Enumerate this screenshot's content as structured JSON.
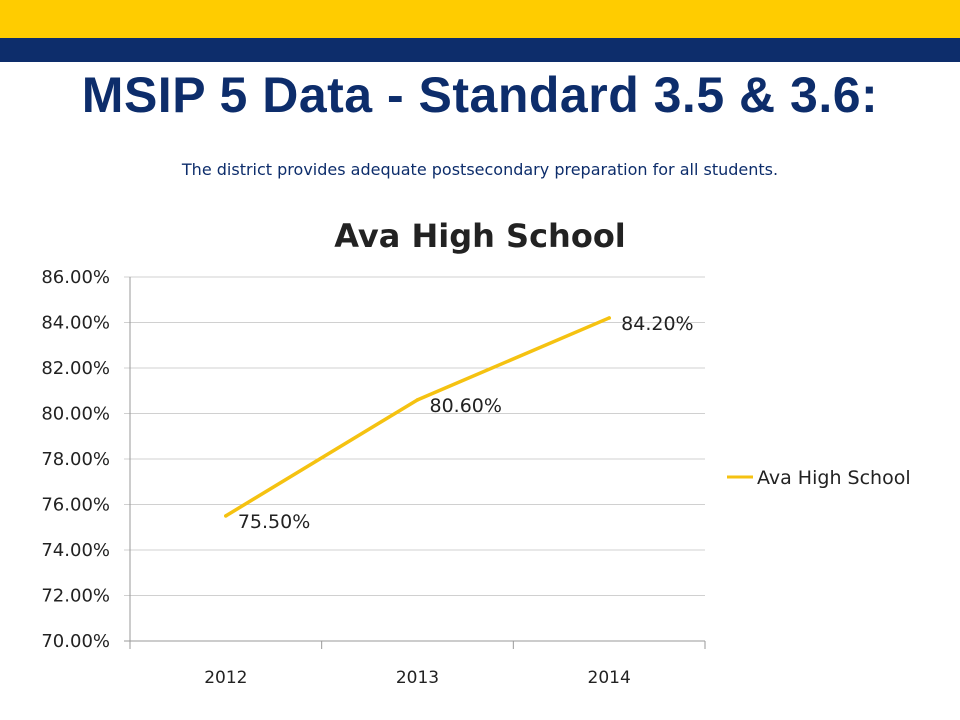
{
  "slide": {
    "title": "MSIP 5 Data - Standard 3.5 & 3.6:",
    "subtitle": "The district provides adequate postsecondary preparation for all students."
  },
  "colors": {
    "gold": "#ffcc00",
    "navy": "#0d2d6b",
    "series": "#f5c211",
    "grid": "#d0d0d0"
  },
  "chart_data": {
    "type": "line",
    "title": "Ava High School",
    "xlabel": "",
    "ylabel": "",
    "categories": [
      "2012",
      "2013",
      "2014"
    ],
    "series": [
      {
        "name": "Ava High School",
        "values": [
          75.5,
          80.6,
          84.2
        ],
        "labels": [
          "75.50%",
          "80.60%",
          "84.20%"
        ]
      }
    ],
    "ylim": [
      70,
      86
    ],
    "yticks": [
      70,
      72,
      74,
      76,
      78,
      80,
      82,
      84,
      86
    ],
    "ytick_labels": [
      "70.00%",
      "72.00%",
      "74.00%",
      "76.00%",
      "78.00%",
      "80.00%",
      "82.00%",
      "84.00%",
      "86.00%"
    ],
    "grid": true,
    "legend_position": "right"
  }
}
